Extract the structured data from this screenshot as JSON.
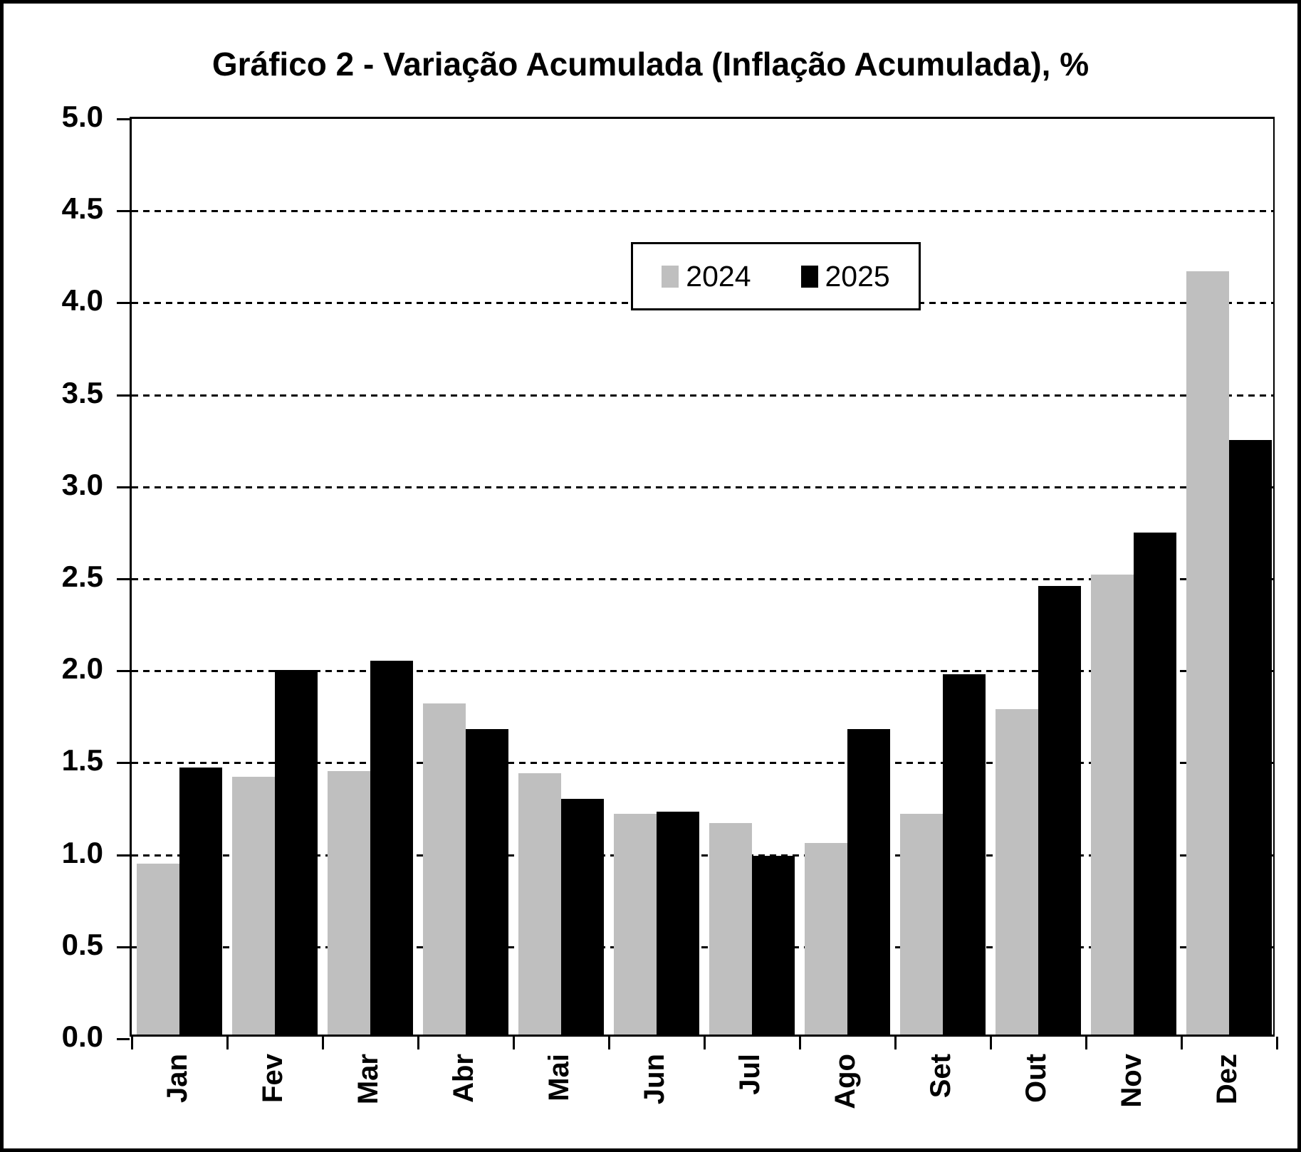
{
  "title": "Gráfico 2 - Variação Acumulada (Inflação Acumulada), %",
  "legend": {
    "items": [
      {
        "label": "2024",
        "color": "#BFBFBF"
      },
      {
        "label": "2025",
        "color": "#000000"
      }
    ]
  },
  "chart_data": {
    "type": "bar",
    "title": "Gráfico 2 - Variação Acumulada (Inflação Acumulada), %",
    "categories": [
      "Jan",
      "Fev",
      "Mar",
      "Abr",
      "Mai",
      "Jun",
      "Jul",
      "Ago",
      "Set",
      "Out",
      "Nov",
      "Dez"
    ],
    "series": [
      {
        "name": "2024",
        "color": "#BFBFBF",
        "values": [
          0.93,
          1.4,
          1.43,
          1.8,
          1.42,
          1.2,
          1.15,
          1.04,
          1.2,
          1.77,
          2.5,
          4.15
        ]
      },
      {
        "name": "2025",
        "color": "#000000",
        "values": [
          1.45,
          1.98,
          2.03,
          1.66,
          1.28,
          1.21,
          0.97,
          1.66,
          1.96,
          2.44,
          2.73,
          3.23
        ]
      }
    ],
    "xlabel": "",
    "ylabel": "",
    "ylim": [
      0.0,
      5.0
    ],
    "ytick_step": 0.5,
    "ytick_labels": [
      "0.0",
      "0.5",
      "1.0",
      "1.5",
      "2.0",
      "2.5",
      "3.0",
      "3.5",
      "4.0",
      "4.5",
      "5.0"
    ],
    "grid": "horizontal-dashed",
    "legend_position": "top-center-inside"
  }
}
